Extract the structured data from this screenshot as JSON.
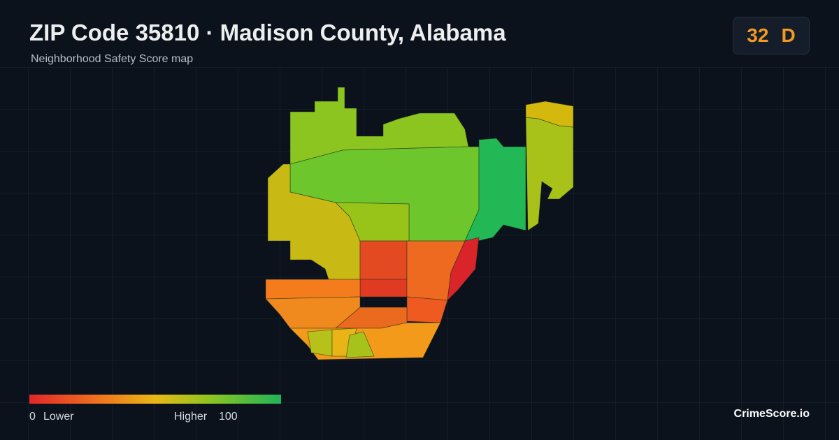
{
  "header": {
    "title": "ZIP Code 35810 · Madison County, Alabama",
    "subtitle": "Neighborhood Safety Score map"
  },
  "badge": {
    "score": 32,
    "grade": "D"
  },
  "legend": {
    "min": 0,
    "min_label": "Lower",
    "max_label": "Higher",
    "max": 100
  },
  "brand": "CrimeScore.io"
}
